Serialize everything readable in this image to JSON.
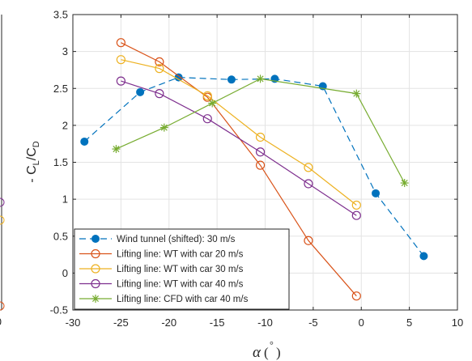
{
  "chart_data": {
    "type": "line",
    "title": "",
    "xlabel": "α (°)",
    "ylabel": "- C_L/C_D",
    "xlim": [
      -30,
      10
    ],
    "ylim": [
      -0.5,
      3.5
    ],
    "x_ticks": [
      -30,
      -25,
      -20,
      -15,
      -10,
      -5,
      0,
      5,
      10
    ],
    "y_ticks": [
      -0.5,
      0,
      0.5,
      1,
      1.5,
      2,
      2.5,
      3,
      3.5
    ],
    "x_tick_labels": [
      "-30",
      "-25",
      "-20",
      "-15",
      "-10",
      "-5",
      "0",
      "5",
      "10"
    ],
    "y_tick_labels": [
      "-0.5",
      "0",
      "0.5",
      "1",
      "1.5",
      "2",
      "2.5",
      "3",
      "3.5"
    ],
    "grid": true,
    "legend_position": "bottom-left",
    "series": [
      {
        "name": "Wind tunnel (shifted): 30 m/s",
        "color": "#0072BD",
        "marker": "filled-circle",
        "linestyle": "dashed",
        "x": [
          -28.8,
          -23.0,
          -19.0,
          -13.5,
          -9.0,
          -4.0,
          1.5,
          6.5
        ],
        "y": [
          1.78,
          2.45,
          2.65,
          2.62,
          2.63,
          2.53,
          1.08,
          0.23
        ]
      },
      {
        "name": "Lifting line: WT with car 20 m/s",
        "color": "#D95319",
        "marker": "open-circle",
        "linestyle": "solid",
        "x": [
          -25,
          -21,
          -16,
          -10.5,
          -5.5,
          -0.5
        ],
        "y": [
          3.12,
          2.86,
          2.38,
          1.46,
          0.44,
          -0.31
        ]
      },
      {
        "name": "Lifting line: WT with car 30 m/s",
        "color": "#EDB120",
        "marker": "open-circle",
        "linestyle": "solid",
        "x": [
          -25,
          -21,
          -16,
          -10.5,
          -5.5,
          -0.5
        ],
        "y": [
          2.89,
          2.77,
          2.4,
          1.84,
          1.43,
          0.92
        ]
      },
      {
        "name": "Lifting line: WT with car 40 m/s",
        "color": "#7E2F8E",
        "marker": "open-circle",
        "linestyle": "solid",
        "x": [
          -25,
          -21,
          -16,
          -10.5,
          -5.5,
          -0.5
        ],
        "y": [
          2.6,
          2.43,
          2.09,
          1.64,
          1.21,
          0.78
        ]
      },
      {
        "name": "Lifting line: CFD with car 40 m/s",
        "color": "#77AC30",
        "marker": "asterisk",
        "linestyle": "solid",
        "x": [
          -25.5,
          -20.5,
          -15.5,
          -10.5,
          -0.5,
          4.5
        ],
        "y": [
          1.68,
          1.97,
          2.3,
          2.63,
          2.43,
          1.22
        ]
      }
    ]
  }
}
